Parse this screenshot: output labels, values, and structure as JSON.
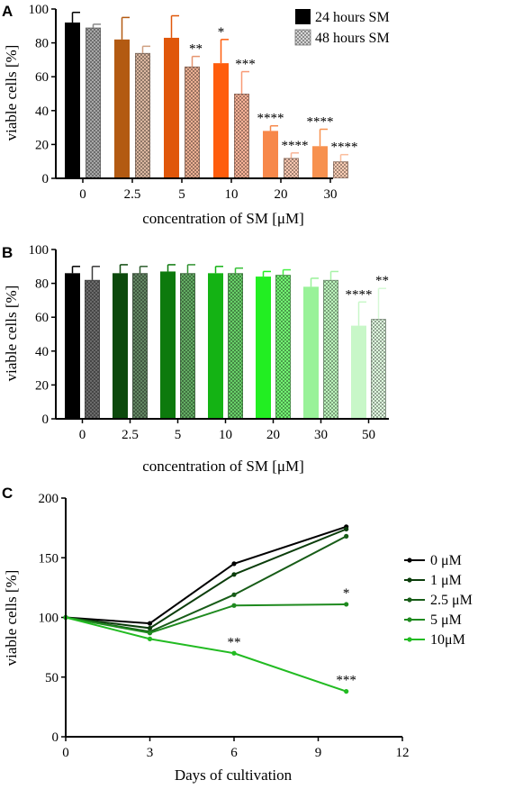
{
  "figure": {
    "panels": [
      {
        "letter": "A",
        "legend": [
          {
            "label": "24 hours SM",
            "swatch": "solid"
          },
          {
            "label": "48 hours SM",
            "swatch": "checkered"
          }
        ]
      },
      {
        "letter": "B"
      },
      {
        "letter": "C"
      }
    ]
  },
  "chart_data": [
    {
      "type": "bar",
      "panel": "A",
      "xlabel": "concentration of SM [μM]",
      "ylabel": "viable cells [%]",
      "ylim": [
        0,
        100
      ],
      "yticks": [
        "0",
        "20",
        "40",
        "60",
        "80",
        "100"
      ],
      "categories": [
        "0",
        "2.5",
        "5",
        "10",
        "20",
        "30"
      ],
      "legend_position": "top-right",
      "series": [
        {
          "name": "24 hours SM",
          "values": [
            92,
            82,
            83,
            68,
            28,
            19
          ],
          "errors": [
            6,
            13,
            13,
            14,
            3,
            10
          ],
          "colors": [
            "#000000",
            "#b35a12",
            "#e0570a",
            "#ff5d0c",
            "#f7884a",
            "#f7914f"
          ],
          "significance": [
            "",
            "",
            "",
            "*",
            "****",
            "****"
          ]
        },
        {
          "name": "48 hours SM",
          "values": [
            89,
            74,
            66,
            50,
            12,
            10
          ],
          "errors": [
            2,
            4,
            6,
            13,
            3,
            4
          ],
          "colors": [
            "#8a8a8a",
            "#cf9f80",
            "#e6956f",
            "#f89a76",
            "#f8b597",
            "#fbbd9c"
          ],
          "significance": [
            "",
            "",
            "**",
            "***",
            "****",
            "****"
          ]
        }
      ]
    },
    {
      "type": "bar",
      "panel": "B",
      "xlabel": "concentration of SM [μM]",
      "ylabel": "viable cells [%]",
      "ylim": [
        0,
        100
      ],
      "yticks": [
        "0",
        "20",
        "40",
        "60",
        "80",
        "100"
      ],
      "categories": [
        "0",
        "2.5",
        "5",
        "10",
        "20",
        "30",
        "50"
      ],
      "series": [
        {
          "values": [
            86,
            86,
            87,
            86,
            84,
            78,
            55
          ],
          "errors": [
            4,
            5,
            4,
            4,
            3,
            5,
            14
          ],
          "colors": [
            "#000000",
            "#0d4a0d",
            "#0d7a0d",
            "#14b314",
            "#22ee22",
            "#99f299",
            "#c8f7c8"
          ],
          "significance": [
            "",
            "",
            "",
            "",
            "",
            "",
            "****"
          ]
        },
        {
          "values": [
            82,
            86,
            86,
            86,
            85,
            82,
            59
          ],
          "errors": [
            8,
            4,
            5,
            3,
            3,
            5,
            18
          ],
          "colors": [
            "#3a3a3a",
            "#2f5f2f",
            "#2f922f",
            "#35c035",
            "#44f044",
            "#a6f2a6",
            "#d6f9d6"
          ],
          "significance": [
            "",
            "",
            "",
            "",
            "",
            "",
            "**"
          ]
        }
      ]
    },
    {
      "type": "line",
      "panel": "C",
      "xlabel": "Days of cultivation",
      "ylabel": "viable cells [%]",
      "xlim": [
        0,
        12
      ],
      "ylim": [
        0,
        200
      ],
      "xticks": [
        "0",
        "3",
        "6",
        "9",
        "12"
      ],
      "yticks": [
        "0",
        "50",
        "100",
        "150",
        "200"
      ],
      "legend_position": "right",
      "x": [
        0,
        3,
        6,
        10
      ],
      "series": [
        {
          "name": "0 μM",
          "values": [
            100,
            95,
            145,
            176
          ],
          "color": "#000000",
          "significance": [
            "",
            "",
            "",
            ""
          ]
        },
        {
          "name": "1 μM",
          "values": [
            100,
            91,
            136,
            174
          ],
          "color": "#0b3d0b",
          "significance": [
            "",
            "",
            "",
            ""
          ]
        },
        {
          "name": "2.5 μM",
          "values": [
            100,
            88,
            119,
            168
          ],
          "color": "#175c17",
          "significance": [
            "",
            "",
            "",
            ""
          ]
        },
        {
          "name": "5 μM",
          "values": [
            100,
            87,
            110,
            111
          ],
          "color": "#1f8a1f",
          "significance": [
            "",
            "",
            "",
            "*"
          ]
        },
        {
          "name": "10μM",
          "values": [
            100,
            82,
            70,
            38
          ],
          "color": "#22bb22",
          "significance": [
            "",
            "",
            "**",
            "***"
          ]
        }
      ]
    }
  ]
}
